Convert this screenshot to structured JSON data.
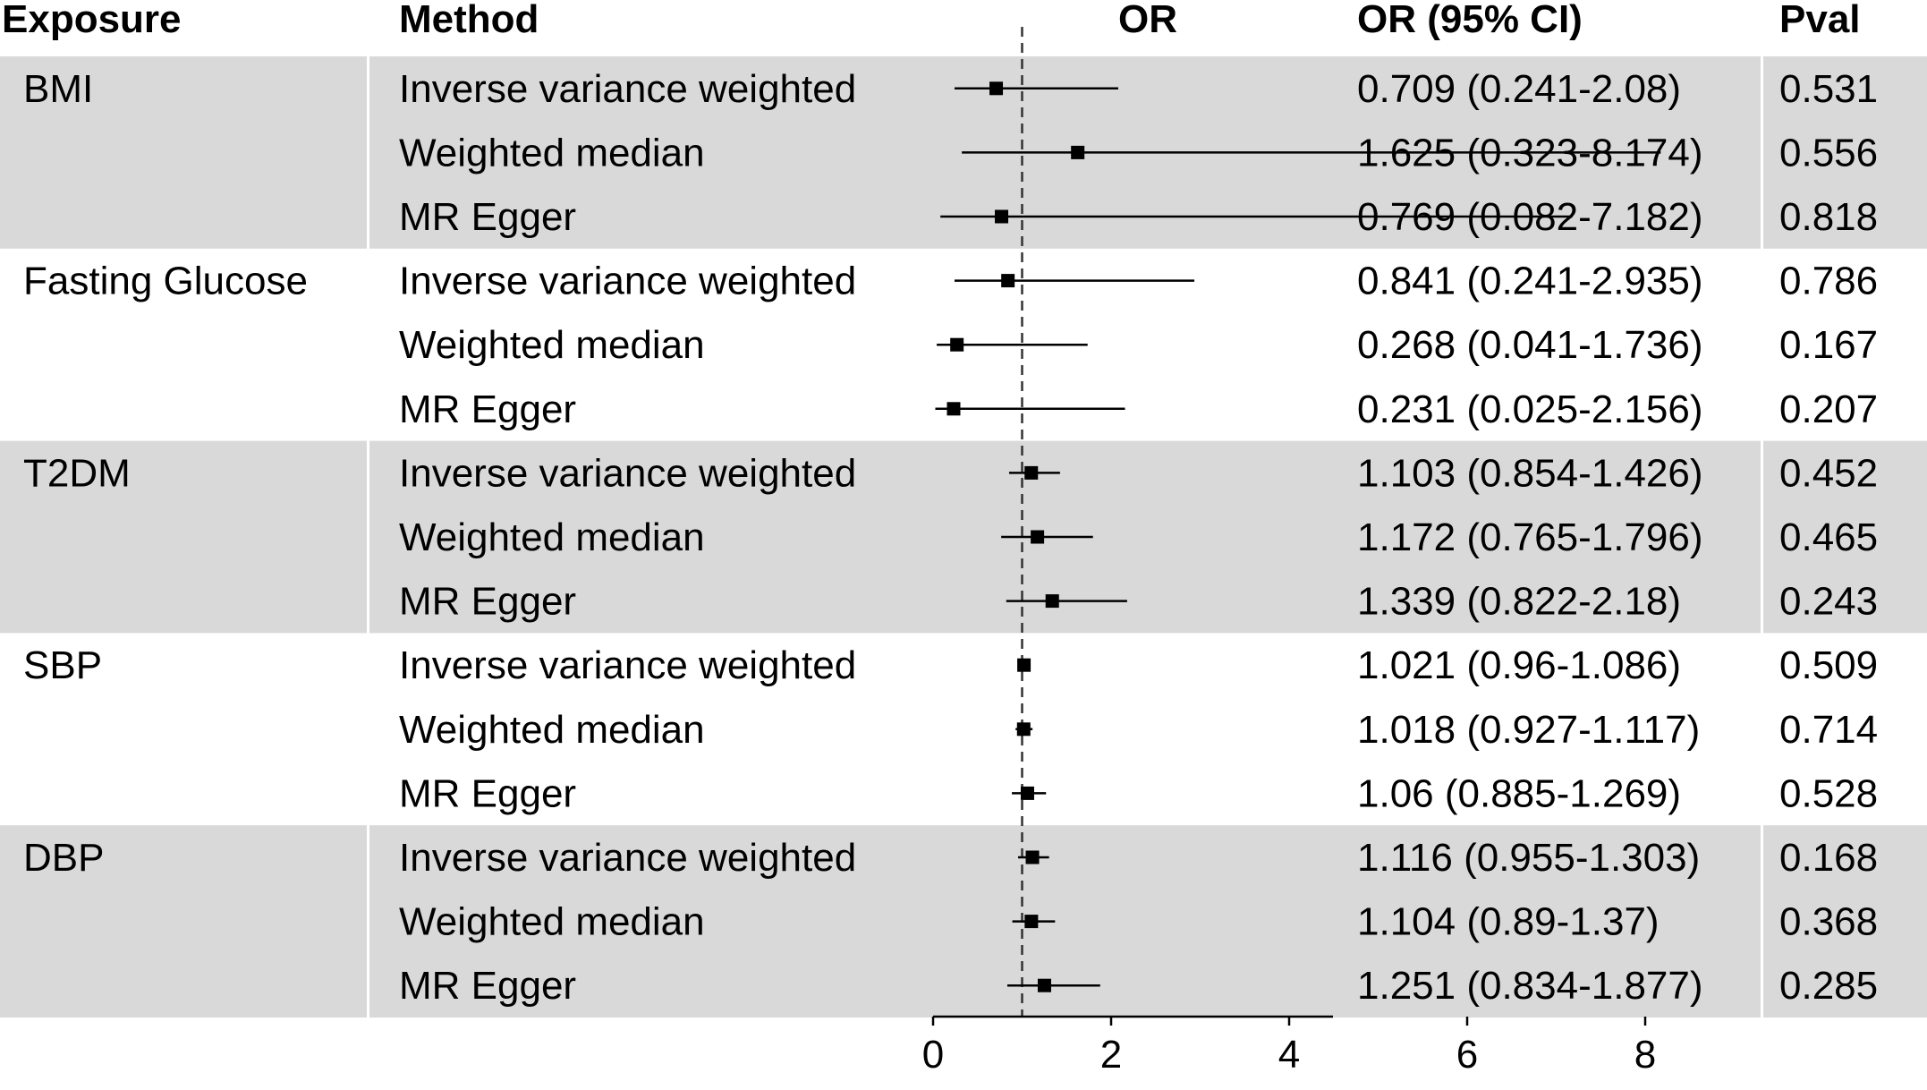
{
  "headers": {
    "exposure": "Exposure",
    "method": "Method",
    "or": "OR",
    "or_ci": "OR (95% CI)",
    "pval": "Pval"
  },
  "rows": [
    {
      "exposure": "BMI",
      "method": "Inverse variance weighted",
      "or_ci": "0.709 (0.241-2.08)",
      "pval": "0.531"
    },
    {
      "exposure": "",
      "method": "Weighted median",
      "or_ci": "1.625 (0.323-8.174)",
      "pval": "0.556"
    },
    {
      "exposure": "",
      "method": "MR Egger",
      "or_ci": "0.769 (0.082-7.182)",
      "pval": "0.818"
    },
    {
      "exposure": "Fasting Glucose",
      "method": "Inverse variance weighted",
      "or_ci": "0.841 (0.241-2.935)",
      "pval": "0.786"
    },
    {
      "exposure": "",
      "method": "Weighted median",
      "or_ci": "0.268 (0.041-1.736)",
      "pval": "0.167"
    },
    {
      "exposure": "",
      "method": "MR Egger",
      "or_ci": "0.231 (0.025-2.156)",
      "pval": "0.207"
    },
    {
      "exposure": "T2DM",
      "method": "Inverse variance weighted",
      "or_ci": "1.103 (0.854-1.426)",
      "pval": "0.452"
    },
    {
      "exposure": "",
      "method": "Weighted median",
      "or_ci": "1.172 (0.765-1.796)",
      "pval": "0.465"
    },
    {
      "exposure": "",
      "method": "MR Egger",
      "or_ci": "1.339 (0.822-2.18)",
      "pval": "0.243"
    },
    {
      "exposure": "SBP",
      "method": "Inverse variance weighted",
      "or_ci": "1.021 (0.96-1.086)",
      "pval": "0.509"
    },
    {
      "exposure": "",
      "method": "Weighted median",
      "or_ci": "1.018 (0.927-1.117)",
      "pval": "0.714"
    },
    {
      "exposure": "",
      "method": "MR Egger",
      "or_ci": "1.06 (0.885-1.269)",
      "pval": "0.528"
    },
    {
      "exposure": "DBP",
      "method": "Inverse variance weighted",
      "or_ci": "1.116 (0.955-1.303)",
      "pval": "0.168"
    },
    {
      "exposure": "",
      "method": "Weighted median",
      "or_ci": "1.104 (0.89-1.37)",
      "pval": "0.368"
    },
    {
      "exposure": "",
      "method": "MR Egger",
      "or_ci": "1.251 (0.834-1.877)",
      "pval": "0.285"
    }
  ],
  "chart_data": {
    "type": "forest",
    "title": "",
    "xlabel": "",
    "ylabel": "",
    "xlim": [
      0,
      9
    ],
    "xticks": [
      0,
      2,
      4,
      6,
      8
    ],
    "reference_line": 1,
    "groups": [
      {
        "name": "BMI",
        "shaded": true
      },
      {
        "name": "Fasting Glucose",
        "shaded": false
      },
      {
        "name": "T2DM",
        "shaded": true
      },
      {
        "name": "SBP",
        "shaded": false
      },
      {
        "name": "DBP",
        "shaded": true
      }
    ],
    "points": [
      {
        "exposure": "BMI",
        "method": "Inverse variance weighted",
        "or": 0.709,
        "lower": 0.241,
        "upper": 2.08
      },
      {
        "exposure": "BMI",
        "method": "Weighted median",
        "or": 1.625,
        "lower": 0.323,
        "upper": 8.174
      },
      {
        "exposure": "BMI",
        "method": "MR Egger",
        "or": 0.769,
        "lower": 0.082,
        "upper": 7.182
      },
      {
        "exposure": "Fasting Glucose",
        "method": "Inverse variance weighted",
        "or": 0.841,
        "lower": 0.241,
        "upper": 2.935
      },
      {
        "exposure": "Fasting Glucose",
        "method": "Weighted median",
        "or": 0.268,
        "lower": 0.041,
        "upper": 1.736
      },
      {
        "exposure": "Fasting Glucose",
        "method": "MR Egger",
        "or": 0.231,
        "lower": 0.025,
        "upper": 2.156
      },
      {
        "exposure": "T2DM",
        "method": "Inverse variance weighted",
        "or": 1.103,
        "lower": 0.854,
        "upper": 1.426
      },
      {
        "exposure": "T2DM",
        "method": "Weighted median",
        "or": 1.172,
        "lower": 0.765,
        "upper": 1.796
      },
      {
        "exposure": "T2DM",
        "method": "MR Egger",
        "or": 1.339,
        "lower": 0.822,
        "upper": 2.18
      },
      {
        "exposure": "SBP",
        "method": "Inverse variance weighted",
        "or": 1.021,
        "lower": 0.96,
        "upper": 1.086
      },
      {
        "exposure": "SBP",
        "method": "Weighted median",
        "or": 1.018,
        "lower": 0.927,
        "upper": 1.117
      },
      {
        "exposure": "SBP",
        "method": "MR Egger",
        "or": 1.06,
        "lower": 0.885,
        "upper": 1.269
      },
      {
        "exposure": "DBP",
        "method": "Inverse variance weighted",
        "or": 1.116,
        "lower": 0.955,
        "upper": 1.303
      },
      {
        "exposure": "DBP",
        "method": "Weighted median",
        "or": 1.104,
        "lower": 0.89,
        "upper": 1.37
      },
      {
        "exposure": "DBP",
        "method": "MR Egger",
        "or": 1.251,
        "lower": 0.834,
        "upper": 1.877
      }
    ],
    "grid": false,
    "shade_color": "#d9d9d9",
    "point_color": "#000000"
  }
}
